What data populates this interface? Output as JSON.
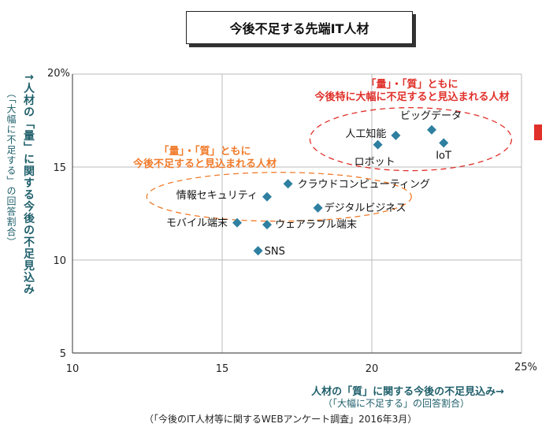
{
  "title": "今後不足する先端IT人材",
  "y_axis": {
    "label_main": "↑人材の「量」に関する今後の不足見込み",
    "label_sub": "（「大幅に不足する」の回答割合）",
    "unit": "%"
  },
  "x_axis": {
    "label_main": "人材の「質」に関する今後の不足見込み→",
    "label_sub": "（「大幅に不足する」の回答割合）",
    "unit": "%"
  },
  "source": "（「今後のIT人材等に関するWEBアンケート調査」2016年3月）",
  "annotations": {
    "red_line1": "「量」・「質」ともに",
    "red_line2": "今後特に大幅に不足すると見込まれる人材",
    "orange_line1": "「量」・「質」ともに",
    "orange_line2": "今後不足すると見込まれる人材"
  },
  "colors": {
    "point": "#2e7fa0",
    "red": "#e0302a",
    "orange": "#f07a2a",
    "axis_text": "#1f5f6b"
  },
  "chart_data": {
    "type": "scatter",
    "xlim": [
      10,
      25
    ],
    "ylim": [
      5,
      20
    ],
    "xticks": [
      "10",
      "15",
      "20",
      "25"
    ],
    "yticks": [
      "5",
      "10",
      "15",
      "20"
    ],
    "grid": true,
    "points": [
      {
        "label": "ビッグデータ",
        "x": 22.0,
        "y": 17.0
      },
      {
        "label": "人工知能",
        "x": 20.8,
        "y": 16.7
      },
      {
        "label": "ロボット",
        "x": 20.2,
        "y": 16.2
      },
      {
        "label": "IoT",
        "x": 22.4,
        "y": 16.3
      },
      {
        "label": "クラウドコンピューティング",
        "x": 17.2,
        "y": 14.1
      },
      {
        "label": "情報セキュリティ",
        "x": 16.5,
        "y": 13.4
      },
      {
        "label": "デジタルビジネス",
        "x": 18.2,
        "y": 12.8
      },
      {
        "label": "モバイル端末",
        "x": 15.5,
        "y": 12.0
      },
      {
        "label": "ウェアラブル端末",
        "x": 16.5,
        "y": 11.9
      },
      {
        "label": "SNS",
        "x": 16.2,
        "y": 10.5
      }
    ]
  }
}
